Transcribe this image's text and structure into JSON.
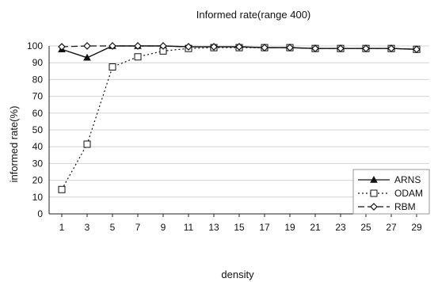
{
  "chart_data": {
    "type": "line",
    "title": "Informed rate(range 400)",
    "xlabel": "density",
    "ylabel": "informed rate(%)",
    "x": [
      1,
      3,
      5,
      7,
      9,
      11,
      13,
      15,
      17,
      19,
      21,
      23,
      25,
      27,
      29
    ],
    "ylim": [
      0,
      100
    ],
    "yticks": [
      0,
      10,
      20,
      30,
      40,
      50,
      60,
      70,
      80,
      90,
      100
    ],
    "grid": true,
    "legend_position": "bottom-right",
    "series": [
      {
        "name": "ARNS",
        "marker": "triangle",
        "line_style": "solid",
        "values": [
          98,
          93,
          100,
          100,
          100,
          99.5,
          99.5,
          99.5,
          99,
          99,
          98.5,
          98.5,
          98.5,
          98.5,
          98
        ]
      },
      {
        "name": "ODAM",
        "marker": "square-open",
        "line_style": "dotted",
        "values": [
          14.5,
          41.5,
          87.5,
          93.5,
          97,
          98.5,
          99,
          99,
          99,
          99,
          98.5,
          98.5,
          98.5,
          98.5,
          98
        ]
      },
      {
        "name": "RBM",
        "marker": "diamond-open",
        "line_style": "dashed",
        "values": [
          99.5,
          100,
          100,
          100,
          100,
          99.5,
          99.5,
          99.5,
          99,
          99,
          98.5,
          98.5,
          98.5,
          98.5,
          98
        ]
      }
    ]
  }
}
